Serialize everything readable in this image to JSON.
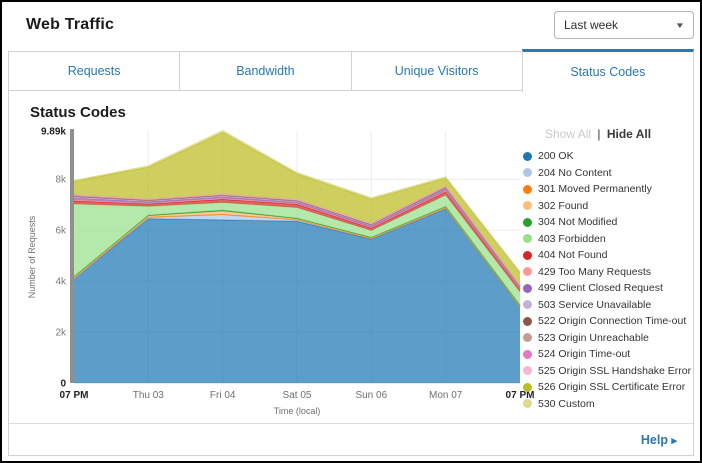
{
  "header": {
    "title": "Web Traffic"
  },
  "range_selector": {
    "value": "Last week",
    "caret": "▼"
  },
  "tabs": [
    {
      "label": "Requests",
      "active": false
    },
    {
      "label": "Bandwidth",
      "active": false
    },
    {
      "label": "Unique Visitors",
      "active": false
    },
    {
      "label": "Status Codes",
      "active": true
    }
  ],
  "panel": {
    "title": "Status Codes"
  },
  "legend": {
    "show_all_label": "Show All",
    "separator": "|",
    "hide_all_label": "Hide All"
  },
  "footer": {
    "help_label": "Help",
    "help_arrow": "▸"
  },
  "chart_data": {
    "type": "area",
    "stacked": true,
    "title": "Status Codes",
    "xlabel": "Time (local)",
    "ylabel": "Number of Requests",
    "x_labels": [
      "07 PM",
      "Thu 03",
      "Fri 04",
      "Sat 05",
      "Sun 06",
      "Mon 07",
      "07 PM"
    ],
    "x_label_emphasis": [
      true,
      false,
      false,
      false,
      false,
      false,
      true
    ],
    "ylim": [
      0,
      9890
    ],
    "yticks": [
      {
        "value": 0,
        "label": "0",
        "emphasis": true
      },
      {
        "value": 2000,
        "label": "2k",
        "emphasis": false
      },
      {
        "value": 4000,
        "label": "4k",
        "emphasis": false
      },
      {
        "value": 6000,
        "label": "6k",
        "emphasis": false
      },
      {
        "value": 8000,
        "label": "8k",
        "emphasis": false
      },
      {
        "value": 9890,
        "label": "9.89k",
        "emphasis": true
      }
    ],
    "grid": true,
    "legend_position": "right",
    "series": [
      {
        "name": "200 OK",
        "color": "#1f77b4",
        "values": [
          4100,
          6450,
          6400,
          6350,
          5650,
          6850,
          3000
        ]
      },
      {
        "name": "204 No Content",
        "color": "#aec7e8",
        "values": [
          10,
          50,
          200,
          50,
          20,
          20,
          10
        ]
      },
      {
        "name": "301 Moved Permanently",
        "color": "#ff7f0e",
        "values": [
          5,
          10,
          20,
          10,
          5,
          10,
          5
        ]
      },
      {
        "name": "302 Found",
        "color": "#ffbb78",
        "values": [
          50,
          50,
          120,
          40,
          30,
          30,
          25
        ]
      },
      {
        "name": "304 Not Modified",
        "color": "#2ca02c",
        "values": [
          10,
          20,
          40,
          15,
          10,
          15,
          10
        ]
      },
      {
        "name": "403 Forbidden",
        "color": "#98df8a",
        "values": [
          2850,
          350,
          300,
          420,
          270,
          450,
          520
        ]
      },
      {
        "name": "404 Not Found",
        "color": "#d62728",
        "values": [
          120,
          100,
          130,
          130,
          100,
          130,
          110
        ]
      },
      {
        "name": "429 Too Many Requests",
        "color": "#ff9896",
        "values": [
          40,
          30,
          40,
          35,
          30,
          40,
          30
        ]
      },
      {
        "name": "499 Client Closed Request",
        "color": "#9467bd",
        "values": [
          70,
          50,
          50,
          45,
          45,
          55,
          40
        ]
      },
      {
        "name": "503 Service Unavailable",
        "color": "#c5b0d5",
        "values": [
          50,
          40,
          45,
          40,
          35,
          40,
          30
        ]
      },
      {
        "name": "522 Origin Connection Time-out",
        "color": "#8c564b",
        "values": [
          25,
          20,
          20,
          20,
          20,
          25,
          15
        ]
      },
      {
        "name": "523 Origin Unreachable",
        "color": "#c49c94",
        "values": [
          20,
          20,
          20,
          20,
          20,
          25,
          15
        ]
      },
      {
        "name": "524 Origin Time-out",
        "color": "#e377c2",
        "values": [
          20,
          15,
          15,
          15,
          15,
          30,
          20
        ]
      },
      {
        "name": "525 Origin SSL Handshake Error",
        "color": "#f7b6d2",
        "values": [
          15,
          15,
          15,
          15,
          15,
          20,
          15
        ]
      },
      {
        "name": "526 Origin SSL Certificate Error",
        "color": "#bcbd22",
        "values": [
          530,
          1250,
          2420,
          1000,
          950,
          300,
          480
        ]
      },
      {
        "name": "530 Custom",
        "color": "#dbdb8d",
        "values": [
          30,
          50,
          70,
          50,
          50,
          50,
          40
        ]
      }
    ]
  }
}
